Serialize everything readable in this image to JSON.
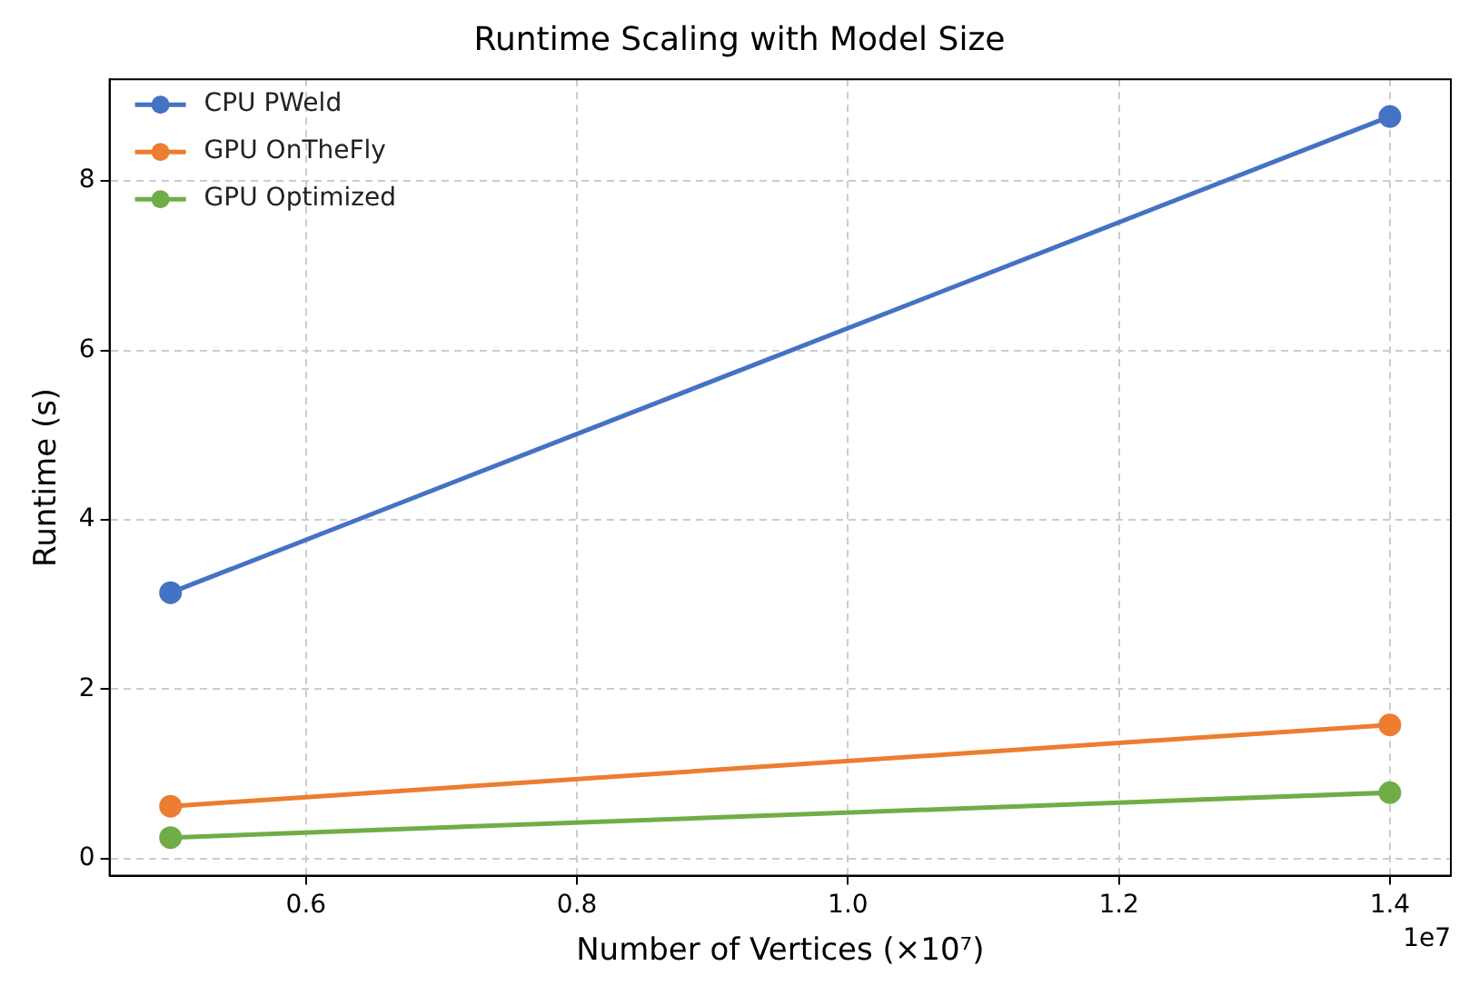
{
  "chart_data": {
    "type": "line",
    "title": "Runtime Scaling with Model Size",
    "xlabel": "Number of Vertices (×10⁷)",
    "ylabel": "Runtime (s)",
    "x": [
      0.5,
      1.4
    ],
    "series": [
      {
        "name": "CPU PWeld",
        "color": "#4472c4",
        "values": [
          3.14,
          8.76
        ]
      },
      {
        "name": "GPU OnTheFly",
        "color": "#ed7d31",
        "values": [
          0.62,
          1.58
        ]
      },
      {
        "name": "GPU Optimized",
        "color": "#70ad47",
        "values": [
          0.25,
          0.78
        ]
      }
    ],
    "xlim": [
      0.455,
      1.445
    ],
    "xticks": [
      0.6,
      0.8,
      {
        "value": 1,
        "label": "1.0"
      },
      1.2,
      1.4
    ],
    "ylim": [
      -0.2,
      9.2
    ],
    "yticks": [
      0,
      2,
      4,
      6,
      8
    ],
    "annotations": [
      "1e7"
    ],
    "grid": true,
    "legend": "top left",
    "marker": "circle",
    "line_style": "solid"
  }
}
